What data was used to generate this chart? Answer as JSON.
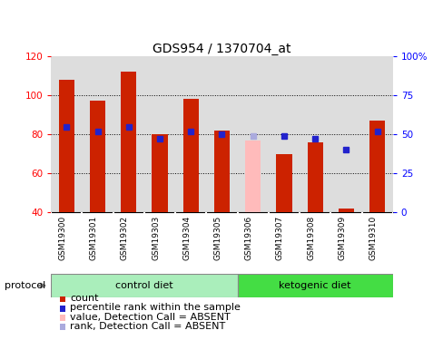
{
  "title": "GDS954 / 1370704_at",
  "samples": [
    "GSM19300",
    "GSM19301",
    "GSM19302",
    "GSM19303",
    "GSM19304",
    "GSM19305",
    "GSM19306",
    "GSM19307",
    "GSM19308",
    "GSM19309",
    "GSM19310"
  ],
  "count_values": [
    108,
    97,
    112,
    80,
    98,
    82,
    77,
    70,
    76,
    42,
    87
  ],
  "count_absent": [
    false,
    false,
    false,
    false,
    false,
    false,
    true,
    false,
    false,
    false,
    false
  ],
  "rank_values": [
    55,
    52,
    55,
    47,
    52,
    50,
    49,
    49,
    47,
    40,
    52
  ],
  "rank_absent": [
    false,
    false,
    false,
    false,
    false,
    false,
    true,
    false,
    false,
    false,
    false
  ],
  "ylim_left": [
    40,
    120
  ],
  "ylim_right": [
    0,
    100
  ],
  "yticks_left": [
    40,
    60,
    80,
    100,
    120
  ],
  "ytick_labels_left": [
    "40",
    "60",
    "80",
    "100",
    "120"
  ],
  "ytick_labels_right": [
    "0",
    "25",
    "50",
    "75",
    "100%"
  ],
  "bar_color": "#cc2200",
  "bar_absent_color": "#ffbbbb",
  "rank_color": "#2222cc",
  "rank_absent_color": "#aaaadd",
  "bg_color": "#ffffff",
  "plot_bg_color": "#dddddd",
  "tick_label_bg_color": "#cccccc",
  "control_color": "#aaeebb",
  "keto_color": "#44dd44",
  "control_diet_label": "control diet",
  "ketogenic_diet_label": "ketogenic diet",
  "protocol_label": "protocol",
  "legend_items": [
    {
      "label": "count",
      "color": "#cc2200"
    },
    {
      "label": "percentile rank within the sample",
      "color": "#2222cc"
    },
    {
      "label": "value, Detection Call = ABSENT",
      "color": "#ffbbbb"
    },
    {
      "label": "rank, Detection Call = ABSENT",
      "color": "#aaaadd"
    }
  ],
  "title_fontsize": 10,
  "tick_fontsize": 7.5,
  "legend_fontsize": 8
}
